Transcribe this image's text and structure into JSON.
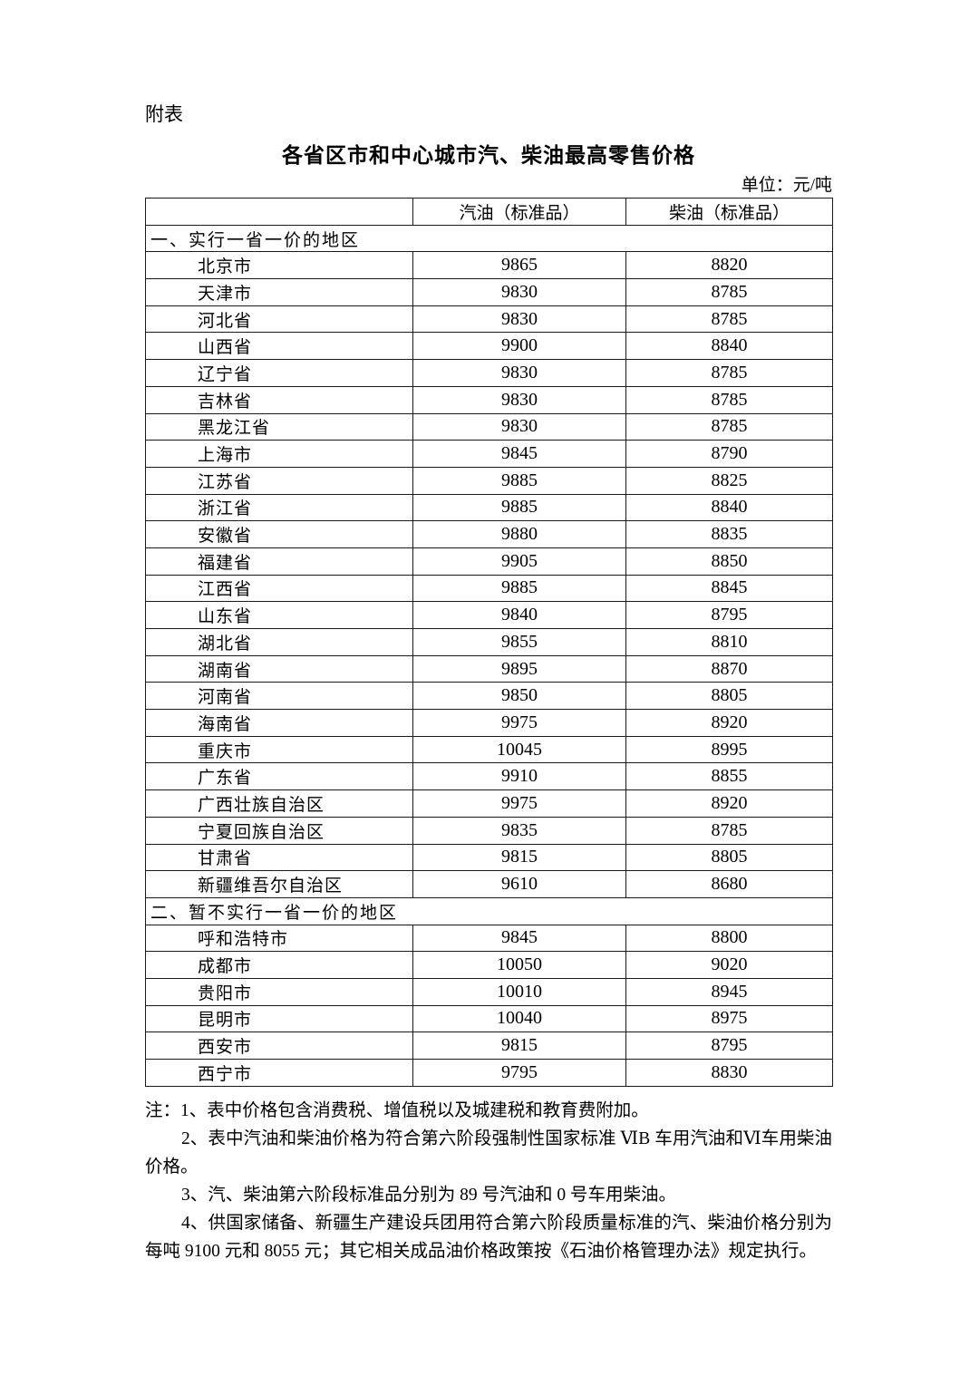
{
  "page": {
    "appendix_label": "附表",
    "title": "各省区市和中心城市汽、柴油最高零售价格",
    "unit_label": "单位：元/吨"
  },
  "table": {
    "columns": [
      "",
      "汽油（标准品）",
      "柴油（标准品）"
    ],
    "sections": [
      {
        "label": "一、实行一省一价的地区",
        "rows": [
          {
            "region": "北京市",
            "gasoline": "9865",
            "diesel": "8820"
          },
          {
            "region": "天津市",
            "gasoline": "9830",
            "diesel": "8785"
          },
          {
            "region": "河北省",
            "gasoline": "9830",
            "diesel": "8785"
          },
          {
            "region": "山西省",
            "gasoline": "9900",
            "diesel": "8840"
          },
          {
            "region": "辽宁省",
            "gasoline": "9830",
            "diesel": "8785"
          },
          {
            "region": "吉林省",
            "gasoline": "9830",
            "diesel": "8785"
          },
          {
            "region": "黑龙江省",
            "gasoline": "9830",
            "diesel": "8785"
          },
          {
            "region": "上海市",
            "gasoline": "9845",
            "diesel": "8790"
          },
          {
            "region": "江苏省",
            "gasoline": "9885",
            "diesel": "8825"
          },
          {
            "region": "浙江省",
            "gasoline": "9885",
            "diesel": "8840"
          },
          {
            "region": "安徽省",
            "gasoline": "9880",
            "diesel": "8835"
          },
          {
            "region": "福建省",
            "gasoline": "9905",
            "diesel": "8850"
          },
          {
            "region": "江西省",
            "gasoline": "9885",
            "diesel": "8845"
          },
          {
            "region": "山东省",
            "gasoline": "9840",
            "diesel": "8795"
          },
          {
            "region": "湖北省",
            "gasoline": "9855",
            "diesel": "8810"
          },
          {
            "region": "湖南省",
            "gasoline": "9895",
            "diesel": "8870"
          },
          {
            "region": "河南省",
            "gasoline": "9850",
            "diesel": "8805"
          },
          {
            "region": "海南省",
            "gasoline": "9975",
            "diesel": "8920"
          },
          {
            "region": "重庆市",
            "gasoline": "10045",
            "diesel": "8995"
          },
          {
            "region": "广东省",
            "gasoline": "9910",
            "diesel": "8855"
          },
          {
            "region": "广西壮族自治区",
            "gasoline": "9975",
            "diesel": "8920"
          },
          {
            "region": "宁夏回族自治区",
            "gasoline": "9835",
            "diesel": "8785"
          },
          {
            "region": "甘肃省",
            "gasoline": "9815",
            "diesel": "8805"
          },
          {
            "region": "新疆维吾尔自治区",
            "gasoline": "9610",
            "diesel": "8680"
          }
        ]
      },
      {
        "label": "二、暂不实行一省一价的地区",
        "rows": [
          {
            "region": "呼和浩特市",
            "gasoline": "9845",
            "diesel": "8800"
          },
          {
            "region": "成都市",
            "gasoline": "10050",
            "diesel": "9020"
          },
          {
            "region": "贵阳市",
            "gasoline": "10010",
            "diesel": "8945"
          },
          {
            "region": "昆明市",
            "gasoline": "10040",
            "diesel": "8975"
          },
          {
            "region": "西安市",
            "gasoline": "9815",
            "diesel": "8795"
          },
          {
            "region": "西宁市",
            "gasoline": "9795",
            "diesel": "8830"
          }
        ]
      }
    ]
  },
  "notes": [
    "注：1、表中价格包含消费税、增值税以及城建税和教育费附加。",
    "2、表中汽油和柴油价格为符合第六阶段强制性国家标准 ⅥB 车用汽油和Ⅵ车用柴油价格。",
    "3、汽、柴油第六阶段标准品分别为 89 号汽油和 0 号车用柴油。",
    "4、供国家储备、新疆生产建设兵团用符合第六阶段质量标准的汽、柴油价格分别为每吨 9100 元和 8055 元；其它相关成品油价格政策按《石油价格管理办法》规定执行。"
  ]
}
